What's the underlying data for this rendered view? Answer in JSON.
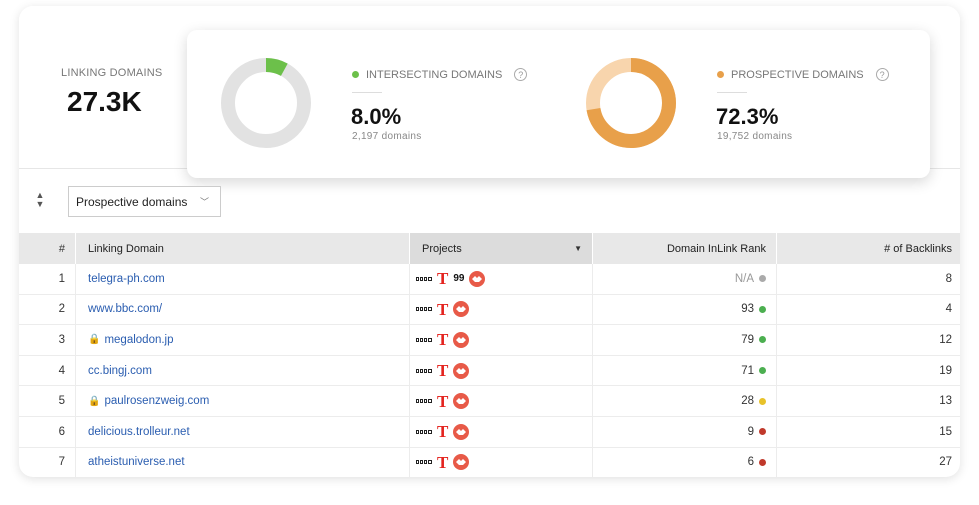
{
  "summary": {
    "linking_domains_label": "LINKING DOMAINS",
    "linking_domains_value": "27.3K",
    "intersecting": {
      "label": "INTERSECTING DOMAINS",
      "percent": "8.0%",
      "count": "2,197 domains",
      "fraction": 0.08,
      "color": "#6cc04a",
      "track": "#e2e2e2"
    },
    "prospective": {
      "label": "PROSPECTIVE DOMAINS",
      "percent": "72.3%",
      "count": "19,752 domains",
      "fraction": 0.723,
      "color": "#e8a04a",
      "track": "#f8d5ad"
    }
  },
  "controls": {
    "filter_value": "Prospective domains",
    "sort_icon": "sort-updown-icon"
  },
  "table": {
    "headers": {
      "num": "#",
      "domain": "Linking Domain",
      "projects": "Projects",
      "rank": "Domain InLink Rank",
      "backlinks": "# of Backlinks"
    },
    "rows": [
      {
        "num": "1",
        "domain": "telegra-ph.com",
        "secure": false,
        "rank": "N/A",
        "rank_color": "#aaaaaa",
        "backlinks": "8",
        "extra_99": true
      },
      {
        "num": "2",
        "domain": "www.bbc.com/",
        "secure": false,
        "rank": "93",
        "rank_color": "#4caf50",
        "backlinks": "4",
        "extra_99": false
      },
      {
        "num": "3",
        "domain": "megalodon.jp",
        "secure": true,
        "rank": "79",
        "rank_color": "#4caf50",
        "backlinks": "12",
        "extra_99": false
      },
      {
        "num": "4",
        "domain": "cc.bingj.com",
        "secure": false,
        "rank": "71",
        "rank_color": "#4caf50",
        "backlinks": "19",
        "extra_99": false
      },
      {
        "num": "5",
        "domain": "paulrosenzweig.com",
        "secure": true,
        "rank": "28",
        "rank_color": "#e8c22a",
        "backlinks": "13",
        "extra_99": false
      },
      {
        "num": "6",
        "domain": "delicious.trolleur.net",
        "secure": false,
        "rank": "9",
        "rank_color": "#c0392b",
        "backlinks": "15",
        "extra_99": false
      },
      {
        "num": "7",
        "domain": "atheistuniverse.net",
        "secure": false,
        "rank": "6",
        "rank_color": "#c0392b",
        "backlinks": "27",
        "extra_99": false
      }
    ],
    "project_icons": [
      "wavy-text-icon",
      "t-letter-icon",
      "99-icon",
      "red-badge-icon"
    ],
    "project_99_text": "99"
  }
}
